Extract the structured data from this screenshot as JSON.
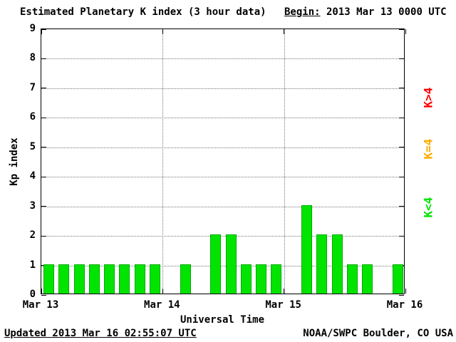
{
  "title": "Estimated Planetary K index (3 hour data)",
  "begin": {
    "label": "Begin:",
    "value": " 2013 Mar 13 0000 UTC"
  },
  "axes": {
    "y_title": "Kp index",
    "x_title": "Universal Time"
  },
  "legend": [
    {
      "label": "K>4",
      "color": "#ff0000"
    },
    {
      "label": "K=4",
      "color": "#ffaa00"
    },
    {
      "label": "K<4",
      "color": "#00e400"
    }
  ],
  "footer": {
    "updated": "Updated 2013 Mar 16 02:55:07 UTC",
    "source": "NOAA/SWPC Boulder, CO USA"
  },
  "chart_data": {
    "type": "bar",
    "title": "Estimated Planetary K index (3 hour data)",
    "xlabel": "Universal Time",
    "ylabel": "Kp index",
    "ylim": [
      0,
      9
    ],
    "yticks": [
      0,
      1,
      2,
      3,
      4,
      5,
      6,
      7,
      8,
      9
    ],
    "x_tick_labels": [
      "Mar 13",
      "Mar 14",
      "Mar 15",
      "Mar 16"
    ],
    "periods_per_day": 8,
    "interval_hours": 3,
    "grid": true,
    "bar_fill": "#00e400",
    "values": [
      1,
      1,
      1,
      1,
      1,
      1,
      1,
      1,
      0,
      1,
      0,
      2,
      2,
      1,
      1,
      1,
      0,
      3,
      2,
      2,
      1,
      1,
      0,
      1
    ]
  }
}
